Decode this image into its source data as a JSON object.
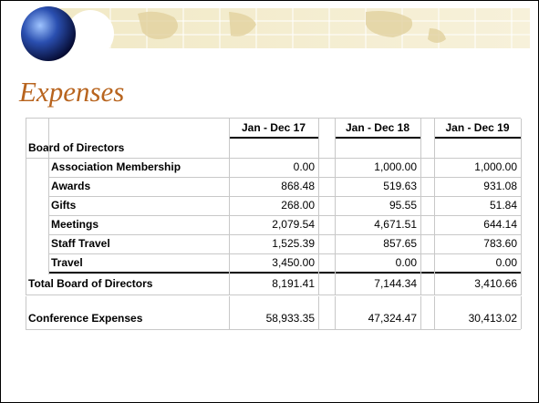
{
  "title": "Expenses",
  "table": {
    "columns": [
      "Jan - Dec 17",
      "Jan - Dec 18",
      "Jan - Dec 19"
    ],
    "group": {
      "label": "Board of Directors",
      "items": [
        {
          "label": "Association Membership",
          "values": [
            "0.00",
            "1,000.00",
            "1,000.00"
          ]
        },
        {
          "label": "Awards",
          "values": [
            "868.48",
            "519.63",
            "931.08"
          ]
        },
        {
          "label": "Gifts",
          "values": [
            "268.00",
            "95.55",
            "51.84"
          ]
        },
        {
          "label": "Meetings",
          "values": [
            "2,079.54",
            "4,671.51",
            "644.14"
          ]
        },
        {
          "label": "Staff Travel",
          "values": [
            "1,525.39",
            "857.65",
            "783.60"
          ]
        },
        {
          "label": "Travel",
          "values": [
            "3,450.00",
            "0.00",
            "0.00"
          ]
        }
      ],
      "total": {
        "label": "Total Board of Directors",
        "values": [
          "8,191.41",
          "7,144.34",
          "3,410.66"
        ]
      }
    },
    "rows": [
      {
        "label": "Conference Expenses",
        "values": [
          "58,933.35",
          "47,324.47",
          "30,413.02"
        ]
      }
    ]
  }
}
